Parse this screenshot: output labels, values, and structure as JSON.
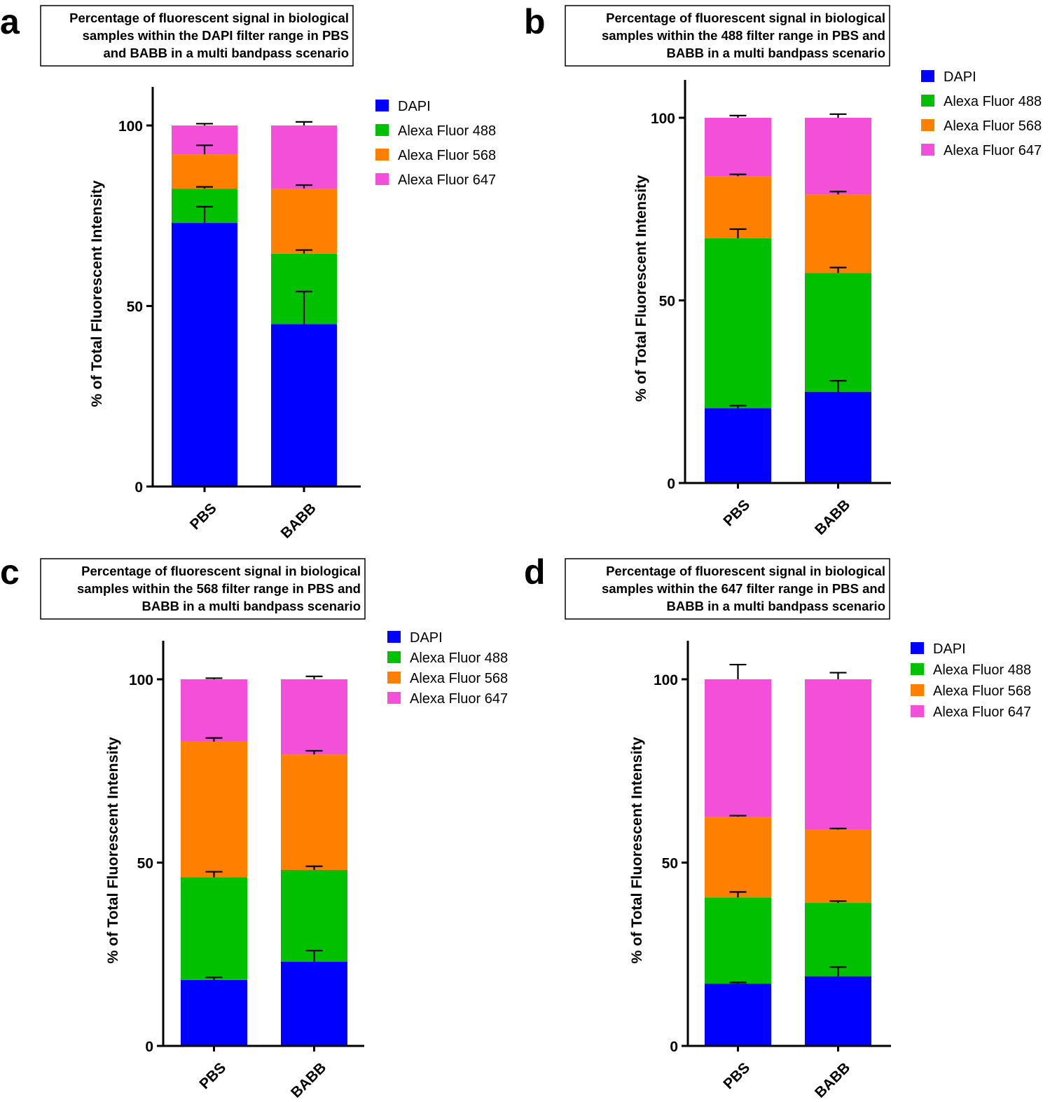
{
  "colors": {
    "DAPI": "#0000ff",
    "Alexa Fluor 488": "#00c000",
    "Alexa Fluor 568": "#ff8000",
    "Alexa Fluor 647": "#f44fd8"
  },
  "chart_data": [
    {
      "panel_label": "a",
      "type": "bar",
      "stacked": true,
      "title_lines": [
        "Percentage of fluorescent signal in biological",
        "samples within the DAPI filter range in PBS",
        "and BABB in a multi bandpass scenario"
      ],
      "ylabel": "% of Total Fluorescent Intensity",
      "ylim": [
        0,
        110
      ],
      "yticks": [
        0,
        50,
        100
      ],
      "categories": [
        "PBS",
        "BABB"
      ],
      "legend_position": "right",
      "series": [
        {
          "name": "DAPI",
          "values": [
            73.0,
            45.0
          ],
          "errors": [
            4.5,
            9.0
          ]
        },
        {
          "name": "Alexa Fluor 488",
          "values": [
            9.5,
            19.5
          ],
          "errors": [
            0.5,
            1.0
          ]
        },
        {
          "name": "Alexa Fluor 568",
          "values": [
            9.5,
            18.0
          ],
          "errors": [
            2.5,
            1.0
          ]
        },
        {
          "name": "Alexa Fluor 647",
          "values": [
            8.0,
            17.5
          ],
          "errors": [
            0.5,
            1.0
          ]
        }
      ]
    },
    {
      "panel_label": "b",
      "type": "bar",
      "stacked": true,
      "title_lines": [
        "Percentage of fluorescent signal in biological",
        "samples within the 488 filter range in PBS and",
        "BABB in a multi bandpass scenario"
      ],
      "ylabel": "% of Total Fluorescent Intensity",
      "ylim": [
        0,
        110
      ],
      "yticks": [
        0,
        50,
        100
      ],
      "categories": [
        "PBS",
        "BABB"
      ],
      "legend_position": "right",
      "series": [
        {
          "name": "DAPI",
          "values": [
            20.5,
            25.0
          ],
          "errors": [
            0.7,
            3.0
          ]
        },
        {
          "name": "Alexa Fluor 488",
          "values": [
            46.5,
            32.5
          ],
          "errors": [
            2.5,
            1.5
          ]
        },
        {
          "name": "Alexa Fluor 568",
          "values": [
            17.0,
            21.5
          ],
          "errors": [
            0.5,
            0.8
          ]
        },
        {
          "name": "Alexa Fluor 647",
          "values": [
            16.0,
            21.0
          ],
          "errors": [
            0.6,
            1.0
          ]
        }
      ]
    },
    {
      "panel_label": "c",
      "type": "bar",
      "stacked": true,
      "title_lines": [
        "Percentage of fluorescent signal in biological",
        "samples within the 568 filter range in PBS and",
        "BABB in a multi bandpass scenario"
      ],
      "ylabel": "% of Total Fluorescent Intensity",
      "ylim": [
        0,
        100
      ],
      "yticks": [
        0,
        50,
        100
      ],
      "categories": [
        "PBS",
        "BABB"
      ],
      "legend_position": "right",
      "series": [
        {
          "name": "DAPI",
          "values": [
            18.0,
            23.0
          ],
          "errors": [
            0.7,
            3.0
          ]
        },
        {
          "name": "Alexa Fluor 488",
          "values": [
            28.0,
            25.0
          ],
          "errors": [
            1.5,
            1.0
          ]
        },
        {
          "name": "Alexa Fluor 568",
          "values": [
            37.0,
            31.5
          ],
          "errors": [
            1.0,
            1.0
          ]
        },
        {
          "name": "Alexa Fluor 647",
          "values": [
            17.0,
            20.5
          ],
          "errors": [
            0.3,
            0.8
          ]
        }
      ]
    },
    {
      "panel_label": "d",
      "type": "bar",
      "stacked": true,
      "title_lines": [
        "Percentage of fluorescent signal in biological",
        "samples within the 647 filter range in PBS and",
        "BABB in a multi bandpass scenario"
      ],
      "ylabel": "% of Total Fluorescent Intensity",
      "ylim": [
        0,
        100
      ],
      "yticks": [
        0,
        50,
        100
      ],
      "categories": [
        "PBS",
        "BABB"
      ],
      "legend_position": "right",
      "series": [
        {
          "name": "DAPI",
          "values": [
            17.0,
            19.0
          ],
          "errors": [
            0.3,
            2.5
          ]
        },
        {
          "name": "Alexa Fluor 488",
          "values": [
            23.5,
            20.0
          ],
          "errors": [
            1.5,
            0.5
          ]
        },
        {
          "name": "Alexa Fluor 568",
          "values": [
            22.0,
            20.0
          ],
          "errors": [
            0.3,
            0.3
          ]
        },
        {
          "name": "Alexa Fluor 647",
          "values": [
            37.5,
            41.0
          ],
          "errors": [
            4.0,
            1.8
          ]
        }
      ]
    }
  ]
}
